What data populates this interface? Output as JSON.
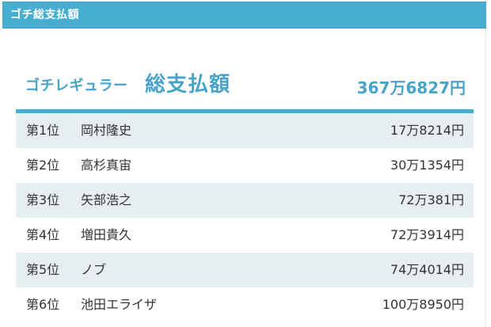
{
  "header": {
    "title": "ゴチ総支払額"
  },
  "summary": {
    "label_small": "ゴチレギュラー",
    "label_big": "総支払額",
    "total": "367万6827円"
  },
  "colors": {
    "accent": "#47aed2",
    "accent_text": "#47a3c9",
    "row_alt": "#e6eef2",
    "text": "#333333"
  },
  "rankings": [
    {
      "rank": "第1位",
      "name": "岡村隆史",
      "amount": "17万8214円"
    },
    {
      "rank": "第2位",
      "name": "高杉真宙",
      "amount": "30万1354円"
    },
    {
      "rank": "第3位",
      "name": "矢部浩之",
      "amount": "72万381円"
    },
    {
      "rank": "第4位",
      "name": "増田貴久",
      "amount": "72万3914円"
    },
    {
      "rank": "第5位",
      "name": "ノブ",
      "amount": "74万4014円"
    },
    {
      "rank": "第6位",
      "name": "池田エライザ",
      "amount": "100万8950円"
    }
  ]
}
